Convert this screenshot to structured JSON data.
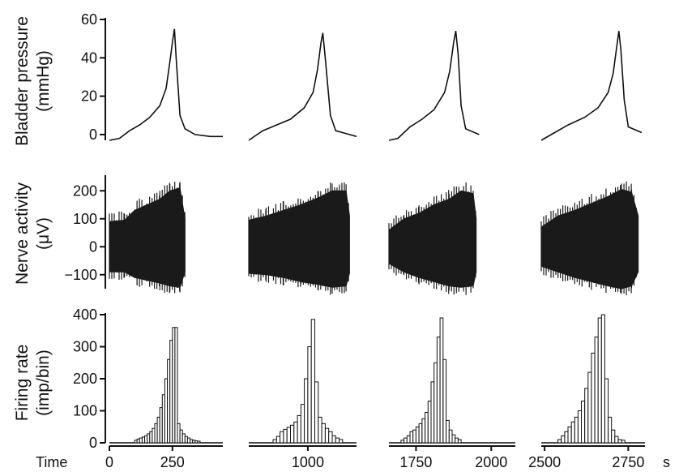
{
  "chart_data": [
    {
      "type": "line",
      "panel": "pressure",
      "ylabel_lines": [
        "Bladder pressure",
        "(mmHg)"
      ],
      "ylim": [
        -3,
        60
      ],
      "yticks": [
        0,
        20,
        40,
        60
      ],
      "segments": [
        {
          "x": [
            0,
            40,
            80,
            120,
            160,
            200,
            225,
            240,
            252,
            258,
            265,
            280,
            300,
            340,
            400,
            450
          ],
          "y": [
            -3,
            -2,
            2,
            5,
            9,
            15,
            24,
            38,
            50,
            55,
            40,
            10,
            3,
            0,
            -1,
            -1
          ]
        },
        {
          "x": [
            830,
            870,
            910,
            950,
            990,
            1015,
            1028,
            1038,
            1043,
            1050,
            1065,
            1080,
            1120,
            1140
          ],
          "y": [
            -3,
            2,
            5,
            8,
            14,
            22,
            34,
            48,
            53,
            40,
            10,
            2,
            0,
            -1
          ]
        },
        {
          "x": [
            1660,
            1690,
            1730,
            1770,
            1810,
            1845,
            1862,
            1875,
            1882,
            1890,
            1900,
            1915,
            1960
          ],
          "y": [
            -3,
            -2,
            4,
            8,
            13,
            22,
            33,
            48,
            54,
            42,
            15,
            3,
            0
          ]
        },
        {
          "x": [
            2490,
            2530,
            2570,
            2620,
            2660,
            2690,
            2705,
            2715,
            2722,
            2728,
            2738,
            2750,
            2790
          ],
          "y": [
            -3,
            1,
            5,
            9,
            14,
            22,
            32,
            45,
            54,
            44,
            18,
            4,
            1
          ]
        }
      ]
    },
    {
      "type": "area",
      "panel": "nerve",
      "ylabel_lines": [
        "Nerve activity",
        "(μV)"
      ],
      "ylim": [
        -150,
        250
      ],
      "yticks": [
        -100,
        0,
        100,
        200
      ],
      "segments": [
        {
          "x": [
            0,
            60,
            100,
            150,
            200,
            240,
            280,
            300
          ],
          "upper": [
            90,
            95,
            130,
            150,
            170,
            200,
            210,
            100
          ],
          "lower": [
            -90,
            -90,
            -110,
            -120,
            -130,
            -140,
            -145,
            -90
          ]
        },
        {
          "x": [
            830,
            880,
            930,
            980,
            1030,
            1070,
            1110,
            1120
          ],
          "upper": [
            95,
            110,
            130,
            150,
            175,
            200,
            200,
            110
          ],
          "lower": [
            -95,
            -100,
            -110,
            -125,
            -135,
            -145,
            -140,
            -95
          ]
        },
        {
          "x": [
            1660,
            1710,
            1760,
            1810,
            1860,
            1900,
            1940,
            1950
          ],
          "upper": [
            60,
            100,
            120,
            150,
            170,
            200,
            190,
            100
          ],
          "lower": [
            -60,
            -90,
            -110,
            -125,
            -140,
            -145,
            -140,
            -90
          ]
        },
        {
          "x": [
            2490,
            2540,
            2590,
            2640,
            2690,
            2730,
            2760,
            2780
          ],
          "upper": [
            70,
            110,
            130,
            155,
            180,
            205,
            195,
            110
          ],
          "lower": [
            -70,
            -90,
            -110,
            -125,
            -140,
            -150,
            -140,
            -90
          ]
        }
      ]
    },
    {
      "type": "bar",
      "panel": "firing",
      "ylabel_lines": [
        "Firing rate",
        "(imp/bin)"
      ],
      "ylim": [
        0,
        400
      ],
      "yticks": [
        0,
        100,
        200,
        300,
        400
      ],
      "xlabel_left": "Time",
      "xlabel_right": "s",
      "bin_width": 10,
      "segments": [
        {
          "start": 100,
          "values": [
            8,
            12,
            15,
            18,
            22,
            28,
            35,
            45,
            60,
            80,
            110,
            150,
            200,
            260,
            320,
            360,
            360,
            60,
            40,
            28,
            20,
            15,
            10,
            8,
            6,
            5
          ]
        },
        {
          "start": 900,
          "values": [
            10,
            20,
            35,
            42,
            48,
            55,
            65,
            85,
            120,
            200,
            300,
            385,
            190,
            80,
            60,
            45,
            35,
            22,
            15,
            10
          ]
        },
        {
          "start": 1700,
          "values": [
            8,
            15,
            22,
            35,
            40,
            50,
            60,
            75,
            95,
            130,
            190,
            250,
            330,
            390,
            260,
            70,
            40,
            25,
            15,
            10
          ]
        },
        {
          "start": 2540,
          "values": [
            10,
            22,
            35,
            50,
            65,
            80,
            100,
            130,
            170,
            220,
            280,
            330,
            390,
            400,
            200,
            80,
            40,
            20,
            10,
            8
          ]
        }
      ],
      "x_ticks": [
        {
          "panel": 0,
          "labels": [
            "0",
            "250"
          ],
          "values": [
            0,
            250
          ]
        },
        {
          "panel": 1,
          "labels": [
            "1000"
          ],
          "values": [
            1000
          ]
        },
        {
          "panel": 2,
          "labels": [
            "1750",
            "2000"
          ],
          "values": [
            1750,
            2000
          ]
        },
        {
          "panel": 3,
          "labels": [
            "2500",
            "2750"
          ],
          "values": [
            2500,
            2750
          ]
        }
      ]
    }
  ]
}
